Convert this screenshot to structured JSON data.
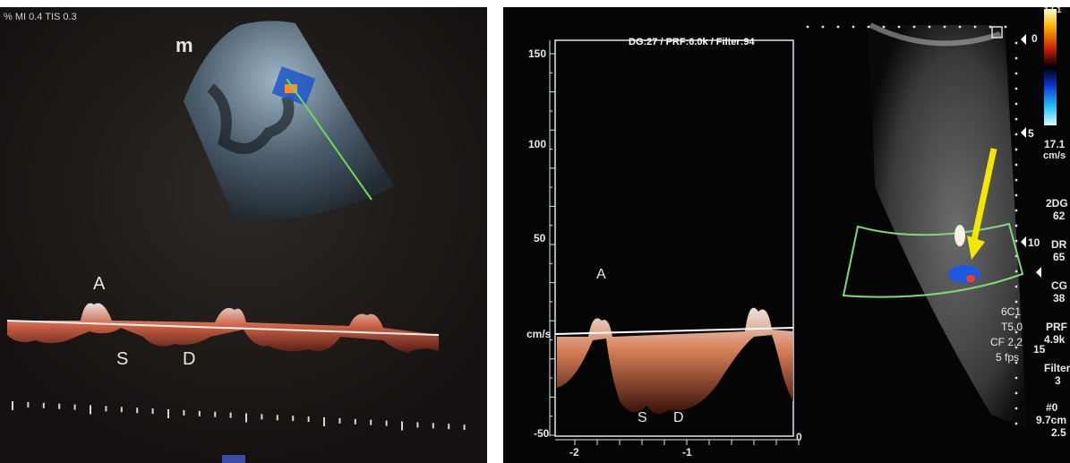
{
  "left_panel": {
    "header": "% MI 0.4 TIS 0.3",
    "brand_mark": "m",
    "labels": {
      "a_wave": "A",
      "s_wave": "S",
      "d_wave": "D"
    }
  },
  "right_panel": {
    "header": "DG:27 /   PRF:6.0k   / Filter:94",
    "y_ticks": [
      "150",
      "100",
      "50",
      "cm/s",
      "-50"
    ],
    "x_ticks": [
      "-2",
      "-1",
      "0"
    ],
    "labels": {
      "a_wave": "A",
      "s_wave": "S",
      "d_wave": "D"
    },
    "color_scale": {
      "top": "17.1",
      "zero": "0",
      "bottom": "17.1",
      "unit": "cm/s"
    },
    "depth_marks": [
      "0",
      "5",
      "10",
      "15"
    ],
    "side_params": [
      "2DG",
      "62",
      "DR",
      "65",
      "CG",
      "38",
      "PRF",
      "4.9k",
      "Filter",
      "3",
      "#0",
      "9.7cm",
      "2.5"
    ],
    "probe_info": [
      "6C1",
      "T5.0",
      "CF 2.2",
      "5 fps"
    ],
    "annotation": "yellow arrow pointing to hepatic vein"
  },
  "colors": {
    "arrow": "#f4e600",
    "baseline": "#ffffff",
    "sample_box": "#7fd97a"
  }
}
